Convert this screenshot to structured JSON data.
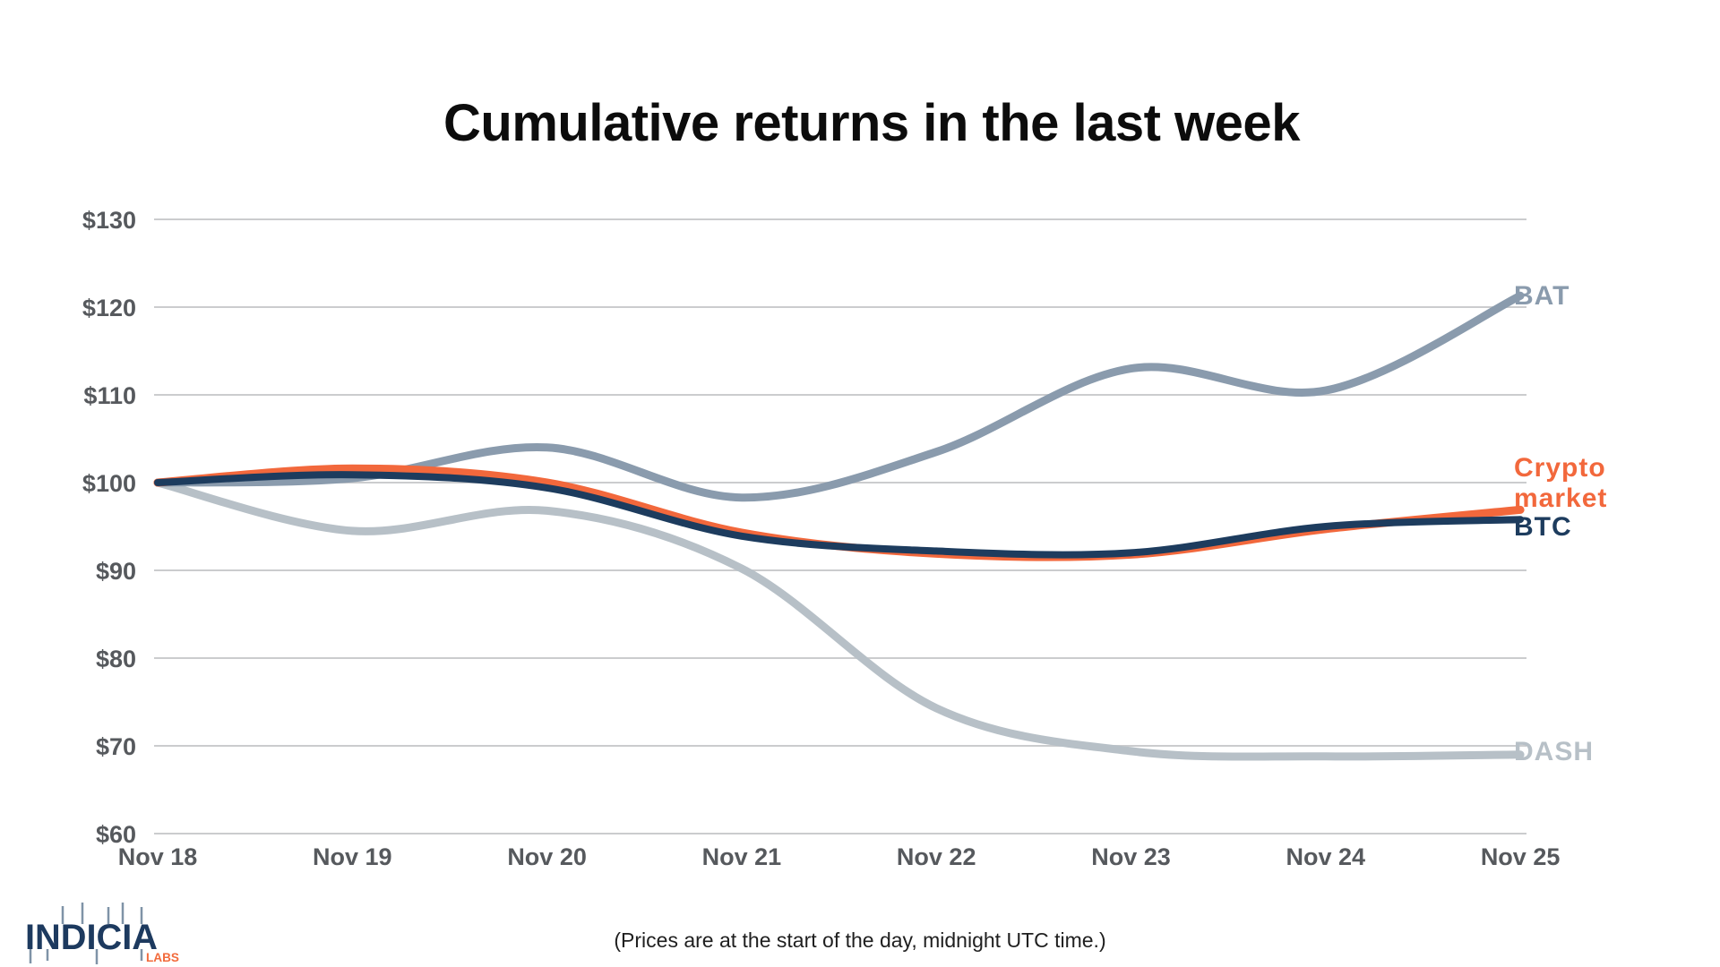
{
  "title": "Cumulative returns in the last week",
  "footnote": "(Prices are at the start of the day, midnight UTC time.)",
  "logo": {
    "name": "INDICIA",
    "sub": "LABS",
    "navy": "#1d3a5f",
    "wick_color": "#7f93a7",
    "sub_color": "#f26b3c"
  },
  "colors": {
    "grid": "#cbccce",
    "axis_text": "#56595d",
    "background": "#ffffff"
  },
  "chart_data": {
    "type": "line",
    "title": "Cumulative returns in the last week",
    "xlabel": "",
    "ylabel": "",
    "x_categories": [
      "Nov 18",
      "Nov 19",
      "Nov 20",
      "Nov 21",
      "Nov 22",
      "Nov 23",
      "Nov 24",
      "Nov 25"
    ],
    "y_ticks": [
      {
        "label": "$130",
        "value": 130
      },
      {
        "label": "$120",
        "value": 120
      },
      {
        "label": "$110",
        "value": 110
      },
      {
        "label": "$100",
        "value": 100
      },
      {
        "label": "$90",
        "value": 90
      },
      {
        "label": "$80",
        "value": 80
      },
      {
        "label": "$70",
        "value": 70
      },
      {
        "label": "$60",
        "value": 60
      }
    ],
    "ylim": [
      60,
      130
    ],
    "grid": "horizontal",
    "legend_position": "right-inline",
    "unit": "USD, indexed to $100 on Nov 18",
    "series": [
      {
        "name": "BAT",
        "color": "#8a9bad",
        "values": [
          100,
          100.5,
          104.0,
          98.3,
          103.5,
          113.0,
          110.5,
          121.3
        ]
      },
      {
        "name": "Crypto market",
        "color": "#f2683c",
        "values": [
          100,
          101.6,
          100.0,
          94.3,
          91.9,
          91.8,
          94.7,
          96.9
        ]
      },
      {
        "name": "BTC",
        "color": "#1d3c5e",
        "values": [
          100,
          100.9,
          99.4,
          93.9,
          92.2,
          92.0,
          95.0,
          95.8
        ]
      },
      {
        "name": "DASH",
        "color": "#b7c0c7",
        "values": [
          100,
          94.5,
          96.8,
          90.2,
          74.3,
          69.4,
          68.8,
          69.0
        ]
      }
    ],
    "draw_order": [
      "DASH",
      "BAT",
      "Crypto market",
      "BTC"
    ]
  }
}
